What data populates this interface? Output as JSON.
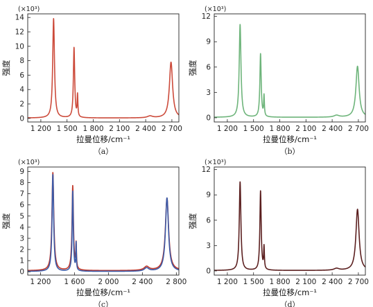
{
  "chart_data": [
    {
      "type": "line",
      "panel_label": "（a）",
      "xlabel": "拉曼位移/cm⁻¹",
      "ylabel": "强度",
      "y_multiplier": "(×10³)",
      "xlim": [
        1050,
        2780
      ],
      "ylim": [
        -0.5,
        14.5
      ],
      "x_ticks": [
        1200,
        1500,
        1800,
        2100,
        2400,
        2700
      ],
      "x_tick_labels": [
        "1 200",
        "1 500",
        "1 800",
        "2 100",
        "2 400",
        "2 700"
      ],
      "y_ticks": [
        0,
        2,
        4,
        6,
        8,
        10,
        12,
        14
      ],
      "y_tick_labels": [
        "0",
        "2",
        "4",
        "6",
        "8",
        "10",
        "12",
        "14"
      ],
      "series": [
        {
          "color": "#cc4a3a",
          "baseline": 0.05,
          "peaks": [
            {
              "center": 1346,
              "height": 13.8,
              "width": 12
            },
            {
              "center": 1580,
              "height": 9.75,
              "width": 9
            },
            {
              "center": 1620,
              "height": 3.0,
              "width": 5
            },
            {
              "center": 2450,
              "height": 0.25,
              "width": 35
            },
            {
              "center": 2690,
              "height": 7.75,
              "width": 22
            }
          ]
        }
      ]
    },
    {
      "type": "line",
      "panel_label": "（b）",
      "xlabel": "拉曼位移/cm⁻¹",
      "ylabel": "强度",
      "y_multiplier": "(×10³)",
      "xlim": [
        1050,
        2780
      ],
      "ylim": [
        -0.5,
        12.3
      ],
      "x_ticks": [
        1200,
        1500,
        1800,
        2100,
        2400,
        2700
      ],
      "x_tick_labels": [
        "1 200",
        "1 500",
        "1 800",
        "2 100",
        "2 400",
        "2 700"
      ],
      "y_ticks": [
        0,
        3,
        6,
        9,
        12
      ],
      "y_tick_labels": [
        "0",
        "3",
        "6",
        "9",
        "12"
      ],
      "series": [
        {
          "color": "#6db47a",
          "baseline": 0.05,
          "peaks": [
            {
              "center": 1346,
              "height": 11.0,
              "width": 12
            },
            {
              "center": 1580,
              "height": 7.5,
              "width": 9
            },
            {
              "center": 1620,
              "height": 2.4,
              "width": 5
            },
            {
              "center": 2450,
              "height": 0.22,
              "width": 35
            },
            {
              "center": 2690,
              "height": 6.05,
              "width": 22
            }
          ]
        }
      ]
    },
    {
      "type": "line",
      "panel_label": "（c）",
      "xlabel": "拉曼位移/cm⁻¹",
      "ylabel": "强度",
      "y_multiplier": "(×10³)",
      "xlim": [
        1050,
        2830
      ],
      "ylim": [
        -0.3,
        9.4
      ],
      "x_ticks": [
        1200,
        1600,
        2000,
        2400,
        2800
      ],
      "x_tick_labels": [
        "1 200",
        "1 600",
        "2 000",
        "2 400",
        "2 800"
      ],
      "y_ticks": [
        0,
        1,
        2,
        3,
        4,
        5,
        6,
        7,
        8,
        9
      ],
      "y_tick_labels": [
        "0",
        "1",
        "2",
        "3",
        "4",
        "5",
        "6",
        "7",
        "8",
        "9"
      ],
      "series": [
        {
          "color": "#c0392b",
          "baseline": 0.1,
          "peaks": [
            {
              "center": 1346,
              "height": 8.8,
              "width": 13
            },
            {
              "center": 1580,
              "height": 7.6,
              "width": 10
            },
            {
              "center": 1620,
              "height": 2.2,
              "width": 5
            },
            {
              "center": 2450,
              "height": 0.35,
              "width": 35
            },
            {
              "center": 2690,
              "height": 6.5,
              "width": 23
            }
          ]
        },
        {
          "color": "#3a5aa8",
          "baseline": 0.03,
          "peaks": [
            {
              "center": 1346,
              "height": 8.7,
              "width": 11
            },
            {
              "center": 1580,
              "height": 7.2,
              "width": 8
            },
            {
              "center": 1620,
              "height": 2.4,
              "width": 4
            },
            {
              "center": 2450,
              "height": 0.3,
              "width": 32
            },
            {
              "center": 2690,
              "height": 6.6,
              "width": 21
            }
          ]
        }
      ]
    },
    {
      "type": "line",
      "panel_label": "（d）",
      "xlabel": "拉曼位移/cm⁻¹",
      "ylabel": "强度",
      "y_multiplier": "(×10³)",
      "xlim": [
        1050,
        2780
      ],
      "ylim": [
        -0.5,
        12.3
      ],
      "x_ticks": [
        1200,
        1500,
        1800,
        2100,
        2400,
        2700
      ],
      "x_tick_labels": [
        "1 200",
        "1 500",
        "1 800",
        "2 100",
        "2 400",
        "2 700"
      ],
      "y_ticks": [
        0,
        3,
        6,
        9,
        12
      ],
      "y_tick_labels": [
        "0",
        "3",
        "6",
        "9",
        "12"
      ],
      "series": [
        {
          "color": "#5a1e1e",
          "baseline": 0.05,
          "peaks": [
            {
              "center": 1346,
              "height": 10.5,
              "width": 11
            },
            {
              "center": 1580,
              "height": 9.4,
              "width": 9
            },
            {
              "center": 1620,
              "height": 2.6,
              "width": 5
            },
            {
              "center": 2450,
              "height": 0.22,
              "width": 35
            },
            {
              "center": 2690,
              "height": 7.25,
              "width": 22
            }
          ]
        }
      ]
    }
  ]
}
